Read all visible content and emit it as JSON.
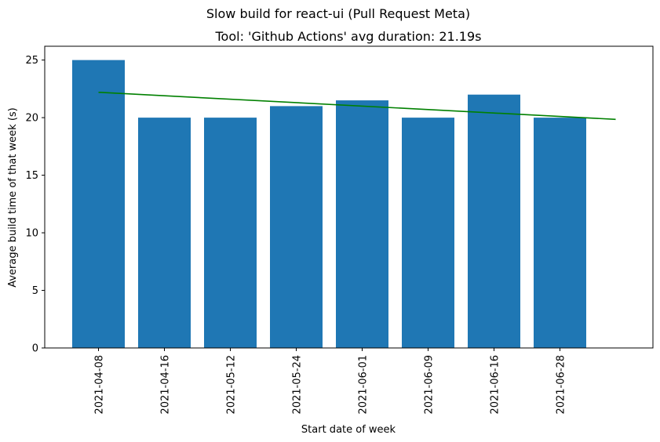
{
  "figure": {
    "suptitle": "Slow build for react-ui (Pull Request Meta)"
  },
  "colors": {
    "bar": "#1f77b4",
    "trend": "#008000",
    "axis": "#000000",
    "background": "#ffffff"
  },
  "chart_data": {
    "type": "bar",
    "title": "Tool: 'Github Actions' avg duration: 21.19s",
    "xlabel": "Start date of week",
    "ylabel": "Average build time of that week (s)",
    "categories": [
      "2021-04-08",
      "2021-04-16",
      "2021-05-12",
      "2021-05-24",
      "2021-06-01",
      "2021-06-09",
      "2021-06-16",
      "2021-06-28"
    ],
    "values": [
      25,
      20,
      20,
      21,
      21.5,
      20,
      22,
      20
    ],
    "ylim": [
      0,
      26.2
    ],
    "yticks": [
      0,
      5,
      10,
      15,
      20,
      25
    ],
    "grid": false,
    "trendline": {
      "type": "line",
      "x_index": [
        0,
        8
      ],
      "y": [
        22.2,
        19.85
      ]
    }
  }
}
